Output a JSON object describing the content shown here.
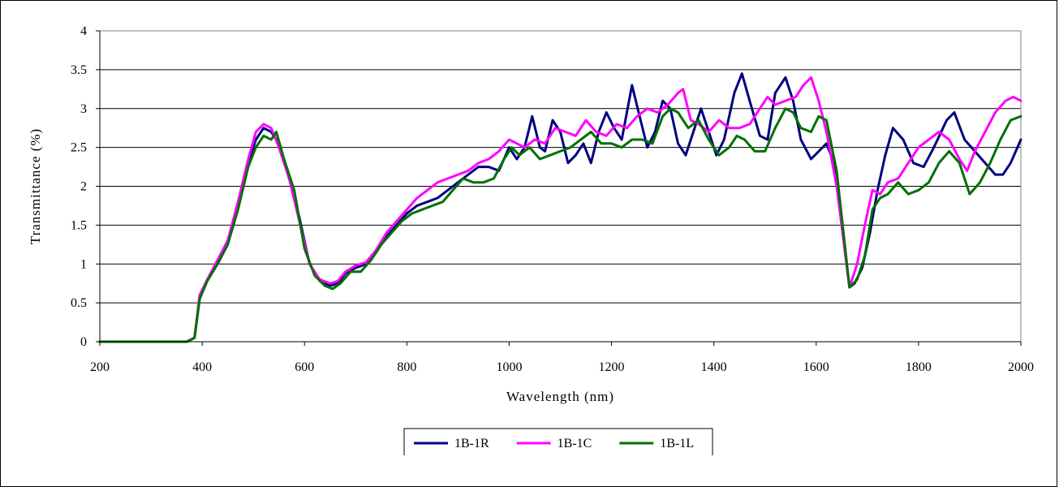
{
  "chart_data": {
    "type": "line",
    "xlabel": "Wavelength (nm)",
    "ylabel": "Transmittance (%)",
    "xlim": [
      200,
      2000
    ],
    "ylim": [
      0,
      4
    ],
    "xticks": [
      "200",
      "400",
      "600",
      "800",
      "1000",
      "1200",
      "1400",
      "1600",
      "1800",
      "2000"
    ],
    "yticks": [
      "0",
      "0.5",
      "1",
      "1.5",
      "2",
      "2.5",
      "3",
      "3.5",
      "4"
    ],
    "grid": "horizontal",
    "legend_position": "bottom",
    "series": [
      {
        "name": "1B-1R",
        "color": "#000080",
        "points": [
          [
            200,
            0
          ],
          [
            370,
            0
          ],
          [
            385,
            0.05
          ],
          [
            395,
            0.55
          ],
          [
            410,
            0.8
          ],
          [
            430,
            1.0
          ],
          [
            450,
            1.25
          ],
          [
            470,
            1.75
          ],
          [
            490,
            2.3
          ],
          [
            505,
            2.6
          ],
          [
            520,
            2.75
          ],
          [
            535,
            2.7
          ],
          [
            550,
            2.55
          ],
          [
            570,
            2.1
          ],
          [
            590,
            1.6
          ],
          [
            610,
            1.0
          ],
          [
            630,
            0.78
          ],
          [
            650,
            0.72
          ],
          [
            665,
            0.75
          ],
          [
            680,
            0.88
          ],
          [
            700,
            0.95
          ],
          [
            720,
            1.0
          ],
          [
            740,
            1.15
          ],
          [
            760,
            1.35
          ],
          [
            780,
            1.5
          ],
          [
            800,
            1.65
          ],
          [
            820,
            1.75
          ],
          [
            840,
            1.8
          ],
          [
            860,
            1.85
          ],
          [
            880,
            1.95
          ],
          [
            900,
            2.05
          ],
          [
            920,
            2.15
          ],
          [
            940,
            2.25
          ],
          [
            960,
            2.25
          ],
          [
            980,
            2.2
          ],
          [
            1000,
            2.5
          ],
          [
            1015,
            2.35
          ],
          [
            1030,
            2.5
          ],
          [
            1045,
            2.9
          ],
          [
            1060,
            2.5
          ],
          [
            1070,
            2.45
          ],
          [
            1085,
            2.85
          ],
          [
            1100,
            2.7
          ],
          [
            1115,
            2.3
          ],
          [
            1130,
            2.4
          ],
          [
            1145,
            2.55
          ],
          [
            1160,
            2.3
          ],
          [
            1175,
            2.7
          ],
          [
            1190,
            2.95
          ],
          [
            1205,
            2.75
          ],
          [
            1220,
            2.6
          ],
          [
            1240,
            3.3
          ],
          [
            1255,
            2.9
          ],
          [
            1270,
            2.5
          ],
          [
            1285,
            2.7
          ],
          [
            1300,
            3.1
          ],
          [
            1315,
            3.0
          ],
          [
            1330,
            2.55
          ],
          [
            1345,
            2.4
          ],
          [
            1360,
            2.7
          ],
          [
            1375,
            3.0
          ],
          [
            1390,
            2.7
          ],
          [
            1405,
            2.4
          ],
          [
            1420,
            2.6
          ],
          [
            1440,
            3.2
          ],
          [
            1455,
            3.45
          ],
          [
            1470,
            3.1
          ],
          [
            1490,
            2.65
          ],
          [
            1505,
            2.6
          ],
          [
            1520,
            3.2
          ],
          [
            1540,
            3.4
          ],
          [
            1555,
            3.1
          ],
          [
            1570,
            2.6
          ],
          [
            1590,
            2.35
          ],
          [
            1605,
            2.45
          ],
          [
            1620,
            2.55
          ],
          [
            1635,
            2.3
          ],
          [
            1650,
            1.5
          ],
          [
            1665,
            0.7
          ],
          [
            1675,
            0.75
          ],
          [
            1690,
            0.95
          ],
          [
            1705,
            1.4
          ],
          [
            1720,
            1.95
          ],
          [
            1735,
            2.4
          ],
          [
            1750,
            2.75
          ],
          [
            1770,
            2.6
          ],
          [
            1790,
            2.3
          ],
          [
            1810,
            2.25
          ],
          [
            1830,
            2.5
          ],
          [
            1855,
            2.85
          ],
          [
            1870,
            2.95
          ],
          [
            1890,
            2.6
          ],
          [
            1910,
            2.45
          ],
          [
            1930,
            2.3
          ],
          [
            1950,
            2.15
          ],
          [
            1965,
            2.15
          ],
          [
            1980,
            2.3
          ],
          [
            2000,
            2.6
          ]
        ]
      },
      {
        "name": "1B-1C",
        "color": "#ff00ff",
        "points": [
          [
            200,
            0
          ],
          [
            370,
            0
          ],
          [
            385,
            0.05
          ],
          [
            395,
            0.6
          ],
          [
            410,
            0.8
          ],
          [
            430,
            1.05
          ],
          [
            450,
            1.3
          ],
          [
            470,
            1.8
          ],
          [
            490,
            2.35
          ],
          [
            505,
            2.7
          ],
          [
            520,
            2.8
          ],
          [
            535,
            2.75
          ],
          [
            550,
            2.5
          ],
          [
            570,
            2.1
          ],
          [
            590,
            1.55
          ],
          [
            610,
            1.0
          ],
          [
            630,
            0.8
          ],
          [
            650,
            0.75
          ],
          [
            665,
            0.78
          ],
          [
            680,
            0.9
          ],
          [
            700,
            0.98
          ],
          [
            720,
            1.02
          ],
          [
            740,
            1.18
          ],
          [
            760,
            1.4
          ],
          [
            780,
            1.55
          ],
          [
            800,
            1.7
          ],
          [
            820,
            1.85
          ],
          [
            840,
            1.95
          ],
          [
            860,
            2.05
          ],
          [
            880,
            2.1
          ],
          [
            900,
            2.15
          ],
          [
            920,
            2.2
          ],
          [
            940,
            2.3
          ],
          [
            960,
            2.35
          ],
          [
            980,
            2.45
          ],
          [
            1000,
            2.6
          ],
          [
            1015,
            2.55
          ],
          [
            1030,
            2.5
          ],
          [
            1050,
            2.6
          ],
          [
            1070,
            2.55
          ],
          [
            1090,
            2.75
          ],
          [
            1110,
            2.7
          ],
          [
            1130,
            2.65
          ],
          [
            1150,
            2.85
          ],
          [
            1170,
            2.7
          ],
          [
            1190,
            2.65
          ],
          [
            1210,
            2.8
          ],
          [
            1230,
            2.75
          ],
          [
            1250,
            2.9
          ],
          [
            1270,
            3.0
          ],
          [
            1290,
            2.95
          ],
          [
            1310,
            3.05
          ],
          [
            1330,
            3.2
          ],
          [
            1340,
            3.25
          ],
          [
            1355,
            2.85
          ],
          [
            1370,
            2.8
          ],
          [
            1390,
            2.7
          ],
          [
            1410,
            2.85
          ],
          [
            1430,
            2.75
          ],
          [
            1450,
            2.75
          ],
          [
            1470,
            2.8
          ],
          [
            1490,
            3.0
          ],
          [
            1505,
            3.15
          ],
          [
            1520,
            3.05
          ],
          [
            1540,
            3.1
          ],
          [
            1560,
            3.15
          ],
          [
            1575,
            3.3
          ],
          [
            1590,
            3.4
          ],
          [
            1605,
            3.1
          ],
          [
            1620,
            2.7
          ],
          [
            1640,
            2.0
          ],
          [
            1665,
            0.7
          ],
          [
            1680,
            1.0
          ],
          [
            1695,
            1.5
          ],
          [
            1710,
            1.95
          ],
          [
            1725,
            1.9
          ],
          [
            1740,
            2.05
          ],
          [
            1760,
            2.1
          ],
          [
            1780,
            2.3
          ],
          [
            1800,
            2.5
          ],
          [
            1820,
            2.6
          ],
          [
            1840,
            2.7
          ],
          [
            1860,
            2.6
          ],
          [
            1880,
            2.35
          ],
          [
            1895,
            2.2
          ],
          [
            1910,
            2.45
          ],
          [
            1930,
            2.7
          ],
          [
            1950,
            2.95
          ],
          [
            1970,
            3.1
          ],
          [
            1985,
            3.15
          ],
          [
            2000,
            3.1
          ]
        ]
      },
      {
        "name": "1B-1L",
        "color": "#007000",
        "points": [
          [
            200,
            0
          ],
          [
            370,
            0
          ],
          [
            385,
            0.05
          ],
          [
            395,
            0.55
          ],
          [
            410,
            0.78
          ],
          [
            430,
            1.0
          ],
          [
            450,
            1.25
          ],
          [
            470,
            1.7
          ],
          [
            490,
            2.25
          ],
          [
            505,
            2.5
          ],
          [
            520,
            2.65
          ],
          [
            535,
            2.6
          ],
          [
            545,
            2.7
          ],
          [
            560,
            2.35
          ],
          [
            580,
            1.95
          ],
          [
            600,
            1.2
          ],
          [
            620,
            0.85
          ],
          [
            640,
            0.72
          ],
          [
            655,
            0.68
          ],
          [
            670,
            0.75
          ],
          [
            690,
            0.9
          ],
          [
            710,
            0.9
          ],
          [
            730,
            1.05
          ],
          [
            750,
            1.25
          ],
          [
            770,
            1.4
          ],
          [
            790,
            1.55
          ],
          [
            810,
            1.65
          ],
          [
            830,
            1.7
          ],
          [
            850,
            1.75
          ],
          [
            870,
            1.8
          ],
          [
            890,
            1.95
          ],
          [
            910,
            2.1
          ],
          [
            930,
            2.05
          ],
          [
            950,
            2.05
          ],
          [
            970,
            2.1
          ],
          [
            990,
            2.35
          ],
          [
            1005,
            2.5
          ],
          [
            1020,
            2.4
          ],
          [
            1040,
            2.5
          ],
          [
            1060,
            2.35
          ],
          [
            1080,
            2.4
          ],
          [
            1100,
            2.45
          ],
          [
            1120,
            2.5
          ],
          [
            1140,
            2.6
          ],
          [
            1160,
            2.7
          ],
          [
            1180,
            2.55
          ],
          [
            1200,
            2.55
          ],
          [
            1220,
            2.5
          ],
          [
            1240,
            2.6
          ],
          [
            1260,
            2.6
          ],
          [
            1280,
            2.55
          ],
          [
            1300,
            2.9
          ],
          [
            1315,
            3.0
          ],
          [
            1330,
            2.95
          ],
          [
            1350,
            2.75
          ],
          [
            1370,
            2.85
          ],
          [
            1390,
            2.6
          ],
          [
            1410,
            2.4
          ],
          [
            1430,
            2.5
          ],
          [
            1445,
            2.65
          ],
          [
            1460,
            2.6
          ],
          [
            1480,
            2.45
          ],
          [
            1500,
            2.45
          ],
          [
            1520,
            2.75
          ],
          [
            1540,
            3.0
          ],
          [
            1555,
            2.95
          ],
          [
            1570,
            2.75
          ],
          [
            1590,
            2.7
          ],
          [
            1605,
            2.9
          ],
          [
            1620,
            2.85
          ],
          [
            1640,
            2.2
          ],
          [
            1665,
            0.7
          ],
          [
            1680,
            0.8
          ],
          [
            1695,
            1.1
          ],
          [
            1710,
            1.7
          ],
          [
            1725,
            1.85
          ],
          [
            1740,
            1.9
          ],
          [
            1760,
            2.05
          ],
          [
            1780,
            1.9
          ],
          [
            1800,
            1.95
          ],
          [
            1820,
            2.05
          ],
          [
            1840,
            2.3
          ],
          [
            1860,
            2.45
          ],
          [
            1880,
            2.3
          ],
          [
            1900,
            1.9
          ],
          [
            1920,
            2.05
          ],
          [
            1940,
            2.3
          ],
          [
            1960,
            2.6
          ],
          [
            1980,
            2.85
          ],
          [
            2000,
            2.9
          ]
        ]
      }
    ]
  }
}
